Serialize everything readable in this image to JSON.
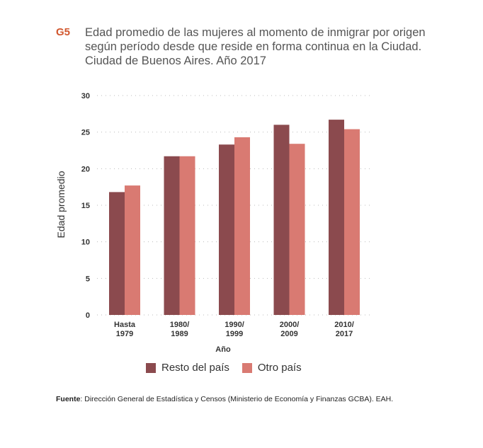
{
  "header": {
    "figure_id": "G5",
    "title_lines": [
      "Edad promedio de las mujeres al momento de inmigrar por origen",
      "según período desde que reside en forma continua en la Ciudad.",
      "Ciudad de Buenos  Aires. Año 2017"
    ]
  },
  "colors": {
    "accent": "#d1572e",
    "series1": "#8b4a4e",
    "series2": "#d97a72",
    "grid": "#bbbbbb"
  },
  "chart_data": {
    "type": "bar",
    "title": "Edad promedio de las mujeres al momento de inmigrar por origen según período desde que reside en forma continua en la Ciudad. Ciudad de Buenos Aires. Año 2017",
    "xlabel": "Año",
    "ylabel": "Edad promedio",
    "ylim": [
      0,
      30
    ],
    "yticks": [
      0,
      5,
      10,
      15,
      20,
      25,
      30
    ],
    "grid": true,
    "categories": [
      [
        "Hasta",
        "1979"
      ],
      [
        "1980/",
        "1989"
      ],
      [
        "1990/",
        "1999"
      ],
      [
        "2000/",
        "2009"
      ],
      [
        "2010/",
        "2017"
      ]
    ],
    "series": [
      {
        "name": "Resto del país",
        "values": [
          16.8,
          21.7,
          23.3,
          26.0,
          26.7
        ]
      },
      {
        "name": "Otro país",
        "values": [
          17.7,
          21.7,
          24.3,
          23.4,
          25.4
        ]
      }
    ],
    "legend_position": "bottom"
  },
  "legend": {
    "items": [
      "Resto del país",
      "Otro país"
    ]
  },
  "footer": {
    "source_label": "Fuente",
    "source_text": ": Dirección General de Estadística y Censos (Ministerio de Economía y Finanzas GCBA). EAH."
  }
}
